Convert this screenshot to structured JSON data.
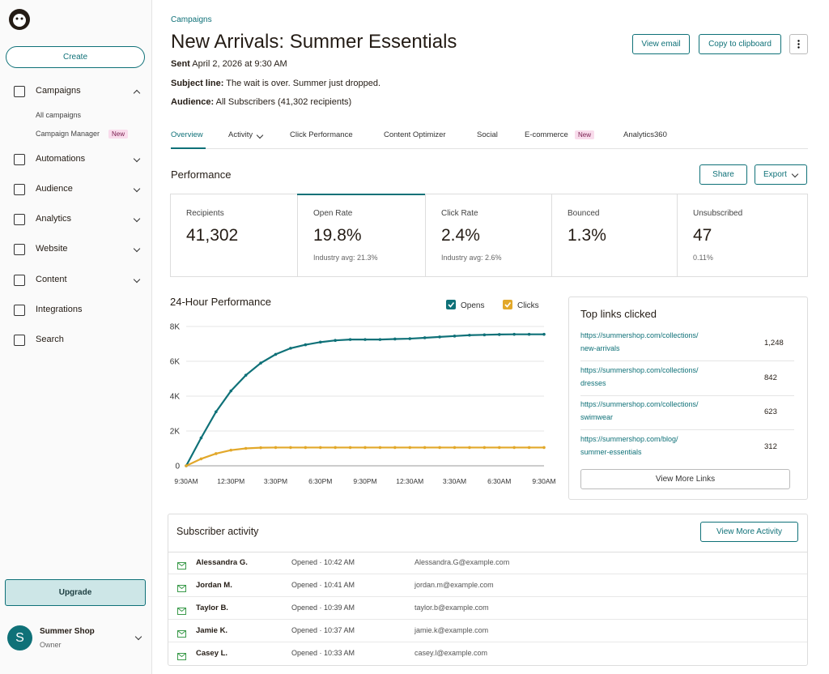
{
  "sidebar": {
    "create": "Create",
    "nav": [
      "Campaigns",
      "Automations",
      "Audience",
      "Analytics",
      "Website",
      "Content",
      "Integrations",
      "Search"
    ],
    "campaign_children": [
      "All campaigns",
      "Campaign Manager"
    ],
    "child_badge": "New",
    "upgrade": "Upgrade",
    "account": {
      "initial": "S",
      "name": "Summer Shop",
      "role": "Owner"
    }
  },
  "header": {
    "breadcrumb": "Campaigns",
    "title": "New Arrivals: Summer Essentials",
    "sent_label": "Sent",
    "sent": "April 2, 2026 at 9:30 AM",
    "subject_label": "Subject line:",
    "subject": "The wait is over. Summer just dropped.",
    "audience_label": "Audience:",
    "audience": "All Subscribers (41,302 recipients)",
    "buttons": [
      "View email",
      "Copy to clipboard"
    ]
  },
  "tabs": {
    "items": [
      "Overview",
      "Activity",
      "Click Performance",
      "Content Optimizer",
      "Social",
      "E-commerce",
      "Analytics360"
    ],
    "badge": "New"
  },
  "performance": {
    "title": "Performance",
    "share": "Share",
    "export": "Export",
    "stats": [
      {
        "label": "Recipients",
        "value": "41,302"
      },
      {
        "label": "Open Rate",
        "value": "19.8%",
        "note": "Industry avg: 21.3%"
      },
      {
        "label": "Click Rate",
        "value": "2.4%",
        "note": "Industry avg: 2.6%"
      },
      {
        "label": "Bounced",
        "value": "1.3%"
      },
      {
        "label": "Unsubscribed",
        "value": "47",
        "note": "0.11%"
      }
    ]
  },
  "chart_data": {
    "type": "line",
    "title": "24-Hour Performance",
    "categories": [
      "9:30AM",
      null,
      null,
      "12:30PM",
      null,
      null,
      "3:30PM",
      null,
      null,
      "6:30PM",
      null,
      null,
      "9:30PM",
      null,
      null,
      "12:30AM",
      null,
      null,
      "3:30AM",
      null,
      null,
      "6:30AM",
      null,
      null,
      "9:30AM"
    ],
    "series": [
      {
        "name": "Opens",
        "color": "#0f7178",
        "values": [
          0,
          1600,
          3100,
          4300,
          5200,
          5900,
          6400,
          6750,
          6950,
          7100,
          7200,
          7250,
          7250,
          7250,
          7280,
          7300,
          7350,
          7400,
          7450,
          7500,
          7520,
          7540,
          7550,
          7550,
          7550
        ]
      },
      {
        "name": "Clicks",
        "color": "#e2a82a",
        "values": [
          0,
          400,
          700,
          900,
          1000,
          1040,
          1050,
          1050,
          1050,
          1050,
          1050,
          1050,
          1050,
          1050,
          1050,
          1050,
          1050,
          1050,
          1050,
          1050,
          1050,
          1050,
          1050,
          1050,
          1050
        ]
      }
    ],
    "ylim": [
      0,
      8000
    ],
    "yticks": [
      0,
      {
        "value": 2000,
        "label": "2K"
      },
      {
        "value": 4000,
        "label": "4K"
      },
      {
        "value": 6000,
        "label": "6K"
      },
      {
        "value": 8000,
        "label": "8K"
      }
    ],
    "grid": true
  },
  "top_links": {
    "title": "Top links clicked",
    "links": [
      {
        "url": [
          "https://summershop.com/collections/",
          "new-arrivals"
        ],
        "count": "1,248"
      },
      {
        "url": [
          "https://summershop.com/collections/",
          "dresses"
        ],
        "count": "842"
      },
      {
        "url": [
          "https://summershop.com/collections/",
          "swimwear"
        ],
        "count": "623"
      },
      {
        "url": [
          "https://summershop.com/blog/",
          "summer-essentials"
        ],
        "count": "312"
      }
    ],
    "button": "View More Links"
  },
  "activity": {
    "title": "Subscriber activity",
    "button": "View More Activity",
    "rows": [
      {
        "name": "Alessandra G.",
        "status": "Opened",
        "time": "10:42 AM",
        "email": "Alessandra.G@example.com"
      },
      {
        "name": "Jordan M.",
        "status": "Opened",
        "time": "10:41 AM",
        "email": "jordan.m@example.com"
      },
      {
        "name": "Taylor B.",
        "status": "Opened",
        "time": "10:39 AM",
        "email": "taylor.b@example.com"
      },
      {
        "name": "Jamie K.",
        "status": "Opened",
        "time": "10:37 AM",
        "email": "jamie.k@example.com"
      },
      {
        "name": "Casey L.",
        "status": "Opened",
        "time": "10:33 AM",
        "email": "casey.l@example.com"
      }
    ]
  }
}
